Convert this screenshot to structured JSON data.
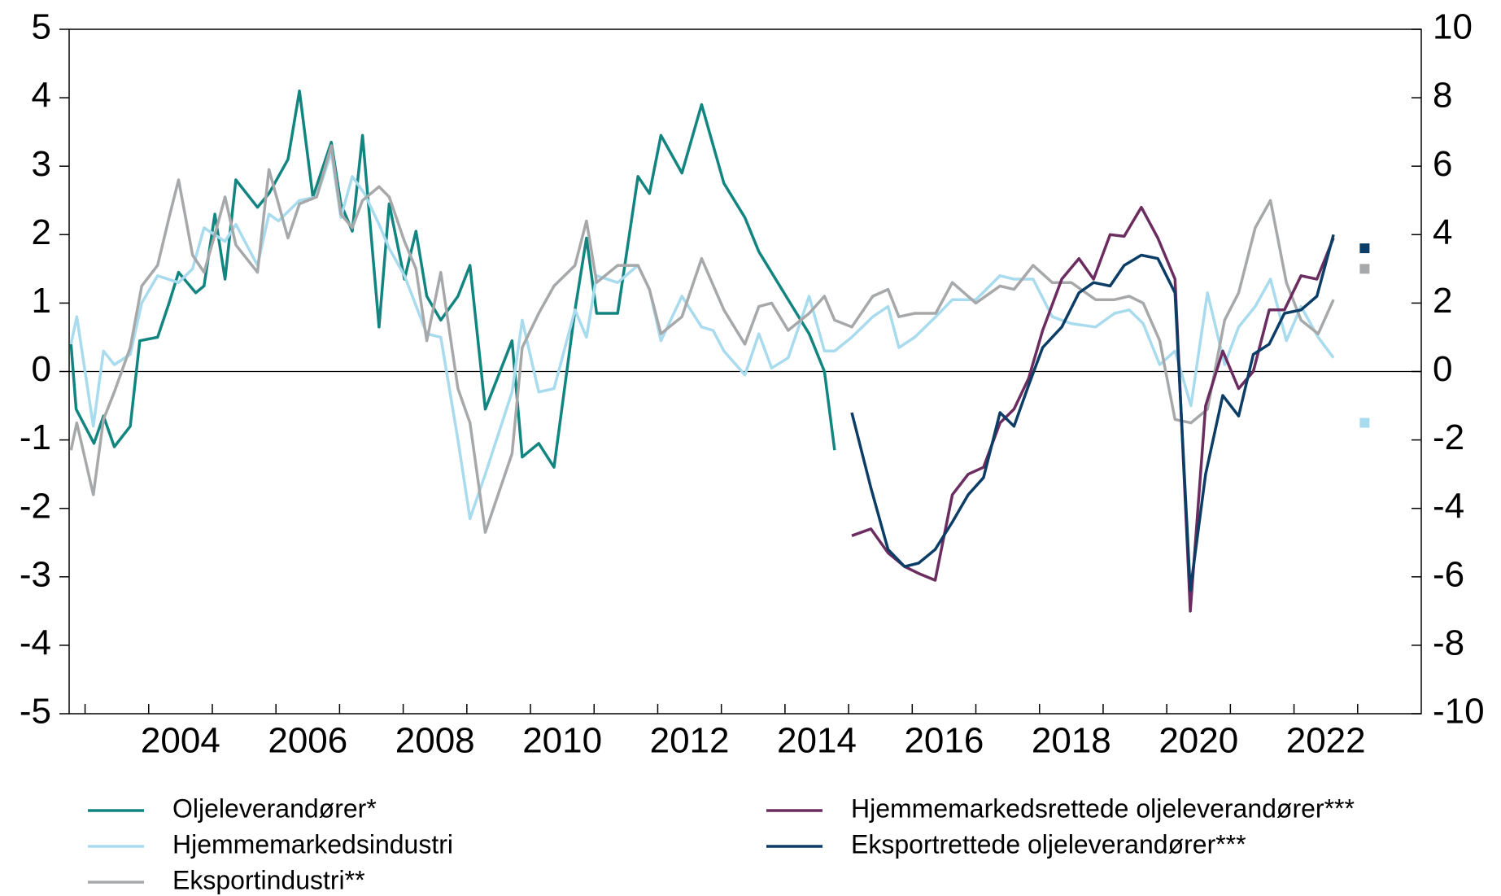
{
  "chart_data": {
    "type": "line",
    "xlim": [
      2002.75,
      2024
    ],
    "xticks": [
      2003,
      2004,
      2005,
      2006,
      2007,
      2008,
      2009,
      2010,
      2011,
      2012,
      2013,
      2014,
      2015,
      2016,
      2017,
      2018,
      2019,
      2020,
      2021,
      2022,
      2023
    ],
    "ylim": [
      -5,
      5
    ],
    "yticks": [
      -5,
      -4,
      -3,
      -2,
      -1,
      0,
      1,
      2,
      3,
      4,
      5
    ],
    "y2lim": [
      -10,
      10
    ],
    "y2ticks": [
      -10,
      -8,
      -6,
      -4,
      -2,
      0,
      2,
      4,
      6,
      8,
      10
    ],
    "grid": false,
    "series": [
      {
        "name": "Oljeleverandører*",
        "color": "#138580",
        "axis": "y",
        "x": [
          2002.78,
          2002.86,
          2003.14,
          2003.29,
          2003.46,
          2003.71,
          2003.86,
          2004.14,
          2004.32,
          2004.47,
          2004.74,
          2004.87,
          2005.04,
          2005.2,
          2005.37,
          2005.71,
          2005.89,
          2006.19,
          2006.37,
          2006.58,
          2006.87,
          2007.02,
          2007.2,
          2007.36,
          2007.62,
          2007.78,
          2008.02,
          2008.2,
          2008.37,
          2008.59,
          2008.86,
          2009.05,
          2009.29,
          2009.71,
          2009.87,
          2010.13,
          2010.37,
          2010.7,
          2010.88,
          2011.04,
          2011.37,
          2011.69,
          2011.87,
          2012.05,
          2012.38,
          2012.69,
          2013.04,
          2013.37,
          2013.59,
          2014.05,
          2014.38,
          2014.62,
          2014.78
        ],
        "values": [
          0.4,
          -0.55,
          -1.05,
          -0.65,
          -1.1,
          -0.8,
          0.45,
          0.5,
          1.0,
          1.45,
          1.15,
          1.25,
          2.3,
          1.35,
          2.8,
          2.4,
          2.6,
          3.1,
          4.1,
          2.55,
          3.35,
          2.45,
          2.05,
          3.45,
          0.65,
          2.45,
          1.35,
          2.05,
          1.1,
          0.75,
          1.1,
          1.55,
          -0.55,
          0.45,
          -1.25,
          -1.05,
          -1.4,
          0.9,
          1.95,
          0.85,
          0.85,
          2.85,
          2.6,
          3.45,
          2.9,
          3.9,
          2.75,
          2.25,
          1.75,
          1.05,
          0.55,
          0,
          -1.15
        ]
      },
      {
        "name": "Hjemmemarkedsindustri",
        "color": "#a9dbee",
        "axis": "y",
        "x": [
          2002.78,
          2002.87,
          2003.13,
          2003.29,
          2003.46,
          2003.71,
          2003.89,
          2004.14,
          2004.47,
          2004.69,
          2004.87,
          2005.2,
          2005.37,
          2005.71,
          2005.89,
          2006.04,
          2006.37,
          2006.64,
          2006.87,
          2007.02,
          2007.2,
          2007.39,
          2007.62,
          2007.78,
          2008.02,
          2008.37,
          2008.59,
          2008.86,
          2009.05,
          2009.29,
          2009.71,
          2009.87,
          2010.13,
          2010.37,
          2010.7,
          2010.88,
          2011.04,
          2011.37,
          2011.69,
          2011.87,
          2012.05,
          2012.38,
          2012.69,
          2012.87,
          2013.04,
          2013.37,
          2013.59,
          2013.79,
          2014.05,
          2014.38,
          2014.62,
          2014.78,
          2015.05,
          2015.38,
          2015.62,
          2015.79,
          2016.04,
          2016.37,
          2016.63,
          2017.0,
          2017.38,
          2017.6,
          2017.9,
          2018.2,
          2018.5,
          2018.88,
          2019.18,
          2019.41,
          2019.63,
          2019.89,
          2020.13,
          2020.38,
          2020.64,
          2020.91,
          2021.13,
          2021.39,
          2021.63,
          2021.88,
          2022.11,
          2022.38,
          2022.62,
          2022.86,
          2023.11
        ],
        "values": [
          0.4,
          0.8,
          -0.8,
          0.3,
          0.1,
          0.25,
          1.0,
          1.4,
          1.3,
          1.5,
          2.1,
          1.9,
          2.15,
          1.55,
          2.3,
          2.2,
          2.5,
          2.55,
          3.2,
          2.25,
          2.85,
          2.6,
          2.15,
          1.8,
          1.4,
          0.55,
          0.5,
          -1.0,
          -2.15,
          -1.5,
          -0.3,
          0.75,
          -0.3,
          -0.25,
          0.9,
          0.5,
          1.4,
          1.3,
          1.55,
          1.2,
          0.45,
          1.1,
          0.65,
          0.6,
          0.3,
          -0.05,
          0.55,
          0.05,
          0.2,
          1.1,
          0.3,
          0.3,
          0.5,
          0.8,
          0.95,
          0.35,
          0.5,
          0.8,
          1.05,
          1.05,
          1.4,
          1.35,
          1.35,
          0.8,
          0.7,
          0.65,
          0.85,
          0.9,
          0.7,
          0.1,
          0.3,
          -0.5,
          1.15,
          0.1,
          0.65,
          0.95,
          1.35,
          0.45,
          0.95,
          0.5,
          0.2,
          null,
          -0.75
        ]
      },
      {
        "name": "Eksportindustri**",
        "color": "#a7a8aa",
        "axis": "y",
        "x": [
          2002.78,
          2002.87,
          2003.13,
          2003.29,
          2003.46,
          2003.71,
          2003.89,
          2004.14,
          2004.32,
          2004.47,
          2004.69,
          2004.87,
          2005.04,
          2005.2,
          2005.37,
          2005.71,
          2005.89,
          2006.19,
          2006.37,
          2006.64,
          2006.87,
          2007.02,
          2007.2,
          2007.36,
          2007.62,
          2007.78,
          2008.02,
          2008.2,
          2008.37,
          2008.59,
          2008.86,
          2009.05,
          2009.29,
          2009.71,
          2009.87,
          2010.13,
          2010.37,
          2010.7,
          2010.88,
          2011.04,
          2011.37,
          2011.69,
          2011.87,
          2012.05,
          2012.38,
          2012.69,
          2013.04,
          2013.37,
          2013.59,
          2013.79,
          2014.05,
          2014.38,
          2014.62,
          2014.78,
          2015.05,
          2015.38,
          2015.62,
          2015.79,
          2016.04,
          2016.37,
          2016.63,
          2017.0,
          2017.38,
          2017.6,
          2017.9,
          2018.2,
          2018.5,
          2018.88,
          2019.18,
          2019.41,
          2019.63,
          2019.89,
          2020.13,
          2020.38,
          2020.64,
          2020.91,
          2021.13,
          2021.39,
          2021.63,
          2021.88,
          2022.11,
          2022.38,
          2022.62,
          2022.86,
          2023.11
        ],
        "values": [
          -1.15,
          -0.75,
          -1.8,
          -0.7,
          -0.3,
          0.35,
          1.25,
          1.55,
          2.25,
          2.8,
          1.7,
          1.45,
          2.0,
          2.55,
          1.85,
          1.45,
          2.95,
          1.95,
          2.45,
          2.55,
          3.3,
          2.3,
          2.1,
          2.5,
          2.7,
          2.55,
          1.9,
          1.5,
          0.45,
          1.45,
          -0.25,
          -0.75,
          -2.35,
          -1.2,
          0.35,
          0.85,
          1.25,
          1.55,
          2.2,
          1.3,
          1.55,
          1.55,
          1.2,
          0.55,
          0.8,
          1.65,
          0.9,
          0.4,
          0.95,
          1.0,
          0.6,
          0.85,
          1.1,
          0.75,
          0.65,
          1.1,
          1.2,
          0.8,
          0.85,
          0.85,
          1.3,
          1.0,
          1.25,
          1.2,
          1.55,
          1.3,
          1.3,
          1.05,
          1.05,
          1.1,
          1.0,
          0.45,
          -0.7,
          -0.75,
          -0.55,
          0.75,
          1.15,
          2.1,
          2.5,
          1.3,
          0.75,
          0.55,
          1.05,
          null,
          1.5
        ]
      },
      {
        "name": "Hjemmemarkedsrettede oljeleverandører***",
        "color": "#6b2c5f",
        "axis": "y2",
        "x": [
          2015.05,
          2015.35,
          2015.62,
          2015.88,
          2016.1,
          2016.36,
          2016.63,
          2016.88,
          2017.12,
          2017.38,
          2017.6,
          2017.83,
          2018.05,
          2018.35,
          2018.62,
          2018.85,
          2019.11,
          2019.33,
          2019.6,
          2019.86,
          2020.13,
          2020.37,
          2020.61,
          2020.88,
          2021.13,
          2021.36,
          2021.61,
          2021.85,
          2022.11,
          2022.36,
          2022.62
        ],
        "values": [
          -4.8,
          -4.6,
          -5.3,
          -5.7,
          -5.9,
          -6.1,
          -3.6,
          -3.0,
          -2.8,
          -1.5,
          -1.1,
          -0.2,
          1.2,
          2.7,
          3.3,
          2.7,
          4.0,
          3.95,
          4.8,
          3.9,
          2.7,
          -7.0,
          -1.0,
          0.6,
          -0.5,
          0.0,
          1.8,
          1.8,
          2.8,
          2.7,
          3.9
        ]
      },
      {
        "name": "Eksportrettede oljeleverandører***",
        "color": "#0c3d66",
        "axis": "y2",
        "x": [
          2015.05,
          2015.35,
          2015.62,
          2015.88,
          2016.1,
          2016.36,
          2016.63,
          2016.88,
          2017.12,
          2017.38,
          2017.6,
          2017.83,
          2018.05,
          2018.35,
          2018.62,
          2018.85,
          2019.11,
          2019.33,
          2019.6,
          2019.86,
          2020.13,
          2020.37,
          2020.61,
          2020.88,
          2021.13,
          2021.36,
          2021.61,
          2021.85,
          2022.11,
          2022.36,
          2022.62,
          2022.86,
          2023.11
        ],
        "values": [
          -1.2,
          -3.4,
          -5.2,
          -5.7,
          -5.6,
          -5.2,
          -4.4,
          -3.6,
          -3.1,
          -1.2,
          -1.6,
          -0.4,
          0.7,
          1.3,
          2.3,
          2.6,
          2.5,
          3.1,
          3.4,
          3.3,
          2.3,
          -6.4,
          -3.0,
          -0.7,
          -1.3,
          0.5,
          0.8,
          1.7,
          1.8,
          2.2,
          4.0,
          null,
          3.6
        ]
      }
    ]
  }
}
